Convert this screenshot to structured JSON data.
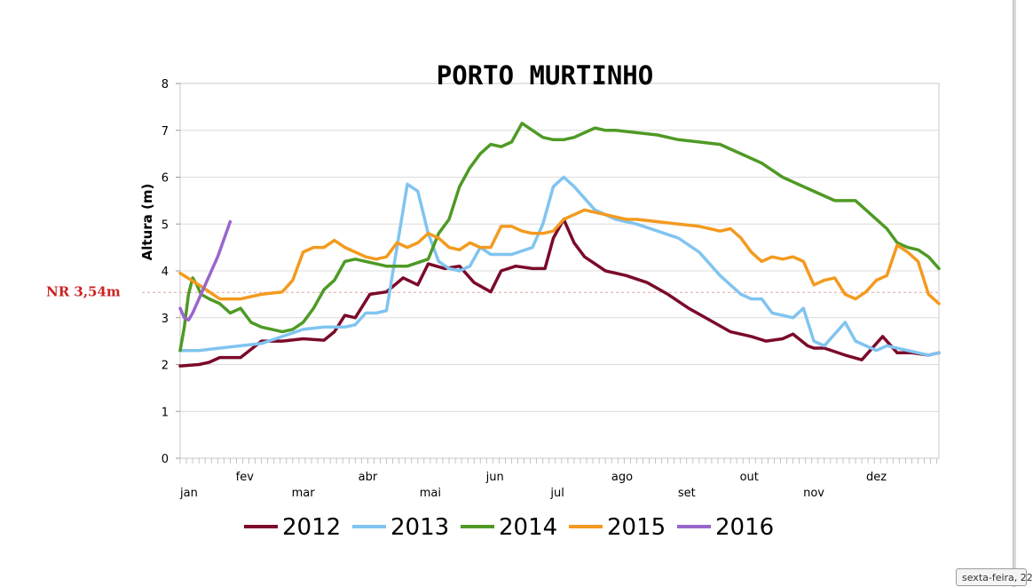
{
  "chart_data": {
    "type": "line",
    "title": "PORTO MURTINHO",
    "ylabel": "Altura (m)",
    "xlabel": "",
    "ylim": [
      0,
      8
    ],
    "yticks": [
      "0",
      "1",
      "2",
      "3",
      "4",
      "5",
      "6",
      "7",
      "8"
    ],
    "x_tick_labels": [
      "jan",
      "fev",
      "mar",
      "abr",
      "mai",
      "jun",
      "jul",
      "ago",
      "set",
      "out",
      "nov",
      "dez"
    ],
    "grid": true,
    "legend_position": "bottom",
    "reference_line": {
      "label": "NR 3,54m",
      "value": 3.54,
      "color": "#cc2222"
    },
    "series": [
      {
        "name": "2012",
        "color": "#7b0a2a",
        "x": [
          1,
          10,
          15,
          20,
          30,
          40,
          50,
          60,
          70,
          75,
          80,
          85,
          92,
          100,
          108,
          115,
          120,
          128,
          135,
          142,
          150,
          155,
          162,
          170,
          176,
          180,
          185,
          190,
          195,
          205,
          215,
          225,
          235,
          245,
          255,
          265,
          275,
          282,
          290,
          295,
          302,
          305,
          310,
          320,
          328,
          335,
          338,
          345,
          352,
          360,
          365
        ],
        "y": [
          1.97,
          2.0,
          2.05,
          2.15,
          2.15,
          2.5,
          2.5,
          2.55,
          2.52,
          2.7,
          3.05,
          3.0,
          3.5,
          3.55,
          3.85,
          3.7,
          4.15,
          4.05,
          4.1,
          3.75,
          3.55,
          4.0,
          4.1,
          4.05,
          4.05,
          4.7,
          5.1,
          4.6,
          4.3,
          4.0,
          3.9,
          3.75,
          3.5,
          3.2,
          2.95,
          2.7,
          2.6,
          2.5,
          2.55,
          2.65,
          2.4,
          2.35,
          2.35,
          2.2,
          2.1,
          2.45,
          2.6,
          2.25,
          2.25,
          2.2,
          2.25
        ]
      },
      {
        "name": "2013",
        "color": "#80c4f0",
        "x": [
          1,
          10,
          20,
          30,
          40,
          50,
          60,
          70,
          80,
          85,
          90,
          95,
          100,
          105,
          110,
          115,
          120,
          125,
          130,
          135,
          140,
          145,
          150,
          160,
          170,
          175,
          180,
          185,
          190,
          200,
          210,
          220,
          230,
          240,
          250,
          260,
          270,
          275,
          280,
          285,
          290,
          295,
          300,
          305,
          310,
          320,
          325,
          330,
          335,
          340,
          350,
          360,
          365
        ],
        "y": [
          2.3,
          2.3,
          2.35,
          2.4,
          2.45,
          2.6,
          2.75,
          2.8,
          2.8,
          2.85,
          3.1,
          3.1,
          3.15,
          4.5,
          5.85,
          5.7,
          4.8,
          4.2,
          4.05,
          4.0,
          4.1,
          4.5,
          4.35,
          4.35,
          4.5,
          5.0,
          5.8,
          6.0,
          5.8,
          5.3,
          5.1,
          5.0,
          4.85,
          4.7,
          4.4,
          3.9,
          3.5,
          3.4,
          3.4,
          3.1,
          3.05,
          3.0,
          3.2,
          2.5,
          2.4,
          2.9,
          2.5,
          2.4,
          2.3,
          2.4,
          2.3,
          2.2,
          2.25
        ]
      },
      {
        "name": "2014",
        "color": "#4e9a25",
        "x": [
          1,
          3,
          5,
          7,
          9,
          11,
          15,
          20,
          25,
          30,
          35,
          40,
          45,
          50,
          55,
          60,
          65,
          70,
          75,
          80,
          85,
          90,
          95,
          100,
          110,
          120,
          125,
          130,
          135,
          140,
          145,
          150,
          155,
          160,
          165,
          170,
          175,
          180,
          185,
          190,
          200,
          205,
          210,
          220,
          230,
          240,
          250,
          260,
          265,
          270,
          280,
          290,
          300,
          310,
          315,
          320,
          325,
          330,
          340,
          345,
          350,
          355,
          360,
          365
        ],
        "y": [
          2.3,
          2.8,
          3.5,
          3.85,
          3.7,
          3.5,
          3.4,
          3.3,
          3.1,
          3.2,
          2.9,
          2.8,
          2.75,
          2.7,
          2.75,
          2.9,
          3.2,
          3.6,
          3.8,
          4.2,
          4.25,
          4.2,
          4.15,
          4.1,
          4.1,
          4.25,
          4.8,
          5.1,
          5.8,
          6.2,
          6.5,
          6.7,
          6.65,
          6.75,
          7.15,
          7.0,
          6.85,
          6.8,
          6.8,
          6.85,
          7.05,
          7.0,
          7.0,
          6.95,
          6.9,
          6.8,
          6.75,
          6.7,
          6.6,
          6.5,
          6.3,
          6.0,
          5.8,
          5.6,
          5.5,
          5.5,
          5.5,
          5.3,
          4.9,
          4.6,
          4.5,
          4.45,
          4.3,
          4.05
        ]
      },
      {
        "name": "2015",
        "color": "#f39a1f",
        "x": [
          1,
          10,
          20,
          30,
          40,
          50,
          55,
          60,
          65,
          70,
          75,
          80,
          85,
          90,
          95,
          100,
          105,
          110,
          115,
          120,
          125,
          130,
          135,
          140,
          145,
          150,
          155,
          160,
          165,
          170,
          175,
          180,
          185,
          190,
          195,
          200,
          205,
          210,
          215,
          220,
          230,
          240,
          250,
          255,
          260,
          265,
          270,
          275,
          280,
          285,
          290,
          295,
          300,
          305,
          310,
          315,
          320,
          325,
          330,
          335,
          340,
          345,
          350,
          355,
          360,
          365
        ],
        "y": [
          3.95,
          3.7,
          3.4,
          3.4,
          3.5,
          3.55,
          3.8,
          4.4,
          4.5,
          4.5,
          4.65,
          4.5,
          4.4,
          4.3,
          4.25,
          4.3,
          4.6,
          4.5,
          4.6,
          4.8,
          4.7,
          4.5,
          4.45,
          4.6,
          4.5,
          4.5,
          4.95,
          4.95,
          4.85,
          4.8,
          4.8,
          4.85,
          5.1,
          5.2,
          5.3,
          5.25,
          5.2,
          5.15,
          5.1,
          5.1,
          5.05,
          5.0,
          4.95,
          4.9,
          4.85,
          4.9,
          4.7,
          4.4,
          4.2,
          4.3,
          4.25,
          4.3,
          4.2,
          3.7,
          3.8,
          3.85,
          3.5,
          3.4,
          3.55,
          3.8,
          3.9,
          4.55,
          4.4,
          4.2,
          3.5,
          3.3
        ]
      },
      {
        "name": "2016",
        "color": "#9966cc",
        "x": [
          1,
          3,
          5,
          7,
          9,
          11,
          13,
          15,
          17,
          19,
          21,
          23,
          25
        ],
        "y": [
          3.2,
          3.0,
          2.95,
          3.1,
          3.3,
          3.5,
          3.7,
          3.9,
          4.1,
          4.3,
          4.55,
          4.8,
          5.05
        ]
      }
    ]
  },
  "tooltip_text": "sexta-feira, 22"
}
